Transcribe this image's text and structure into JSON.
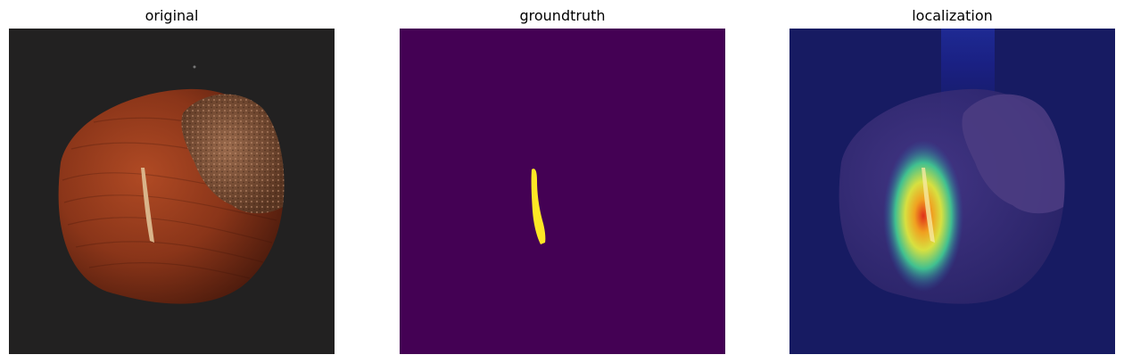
{
  "panels": [
    {
      "title": "original",
      "image": "hazelnut-photo"
    },
    {
      "title": "groundtruth",
      "image": "binary-defect-mask"
    },
    {
      "title": "localization",
      "image": "heatmap-overlay"
    }
  ],
  "colors": {
    "background_dark": "#202020",
    "nut_brown": "#8a3a1f",
    "mask_background": "#440154",
    "mask_foreground": "#fde725",
    "overlay_blue": "#1a1f6e"
  }
}
